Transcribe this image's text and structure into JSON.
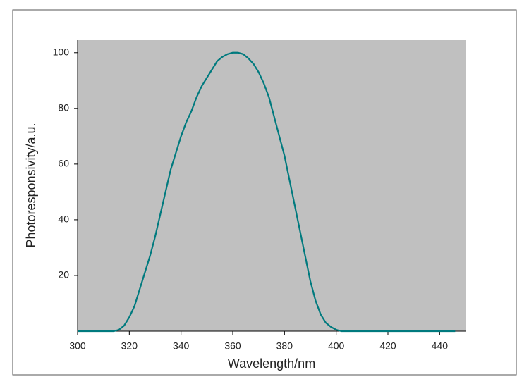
{
  "chart_data": {
    "type": "line",
    "x_label": "Wavelength/nm",
    "y_label": "Photoresponsivity/a.u.",
    "x": [
      300,
      310,
      314,
      316,
      318,
      320,
      322,
      324,
      326,
      328,
      330,
      332,
      334,
      336,
      338,
      340,
      342,
      344,
      346,
      348,
      350,
      352,
      354,
      356,
      358,
      360,
      362,
      364,
      366,
      368,
      370,
      372,
      374,
      376,
      378,
      380,
      382,
      384,
      386,
      388,
      390,
      392,
      394,
      396,
      398,
      400,
      402,
      410,
      446
    ],
    "series": [
      {
        "color": "#007a7e",
        "values": [
          0,
          0,
          0,
          0.5,
          2,
          5,
          9,
          15,
          21,
          27,
          34,
          42,
          50,
          58,
          64,
          70,
          75,
          79,
          84,
          88,
          91,
          94,
          97,
          98.5,
          99.5,
          100,
          100,
          99.5,
          98,
          96,
          93,
          89,
          84,
          77,
          70,
          63,
          54,
          45,
          36,
          27,
          18,
          11,
          6,
          3,
          1.5,
          0.5,
          0,
          0,
          0
        ]
      }
    ],
    "xlim": [
      300,
      450
    ],
    "ylim": [
      0,
      104.5
    ],
    "xticks": [
      300,
      320,
      340,
      360,
      380,
      400,
      420,
      440
    ],
    "yticks": [
      20,
      40,
      60,
      80,
      100
    ],
    "plot_background": "#c0c0c0"
  }
}
